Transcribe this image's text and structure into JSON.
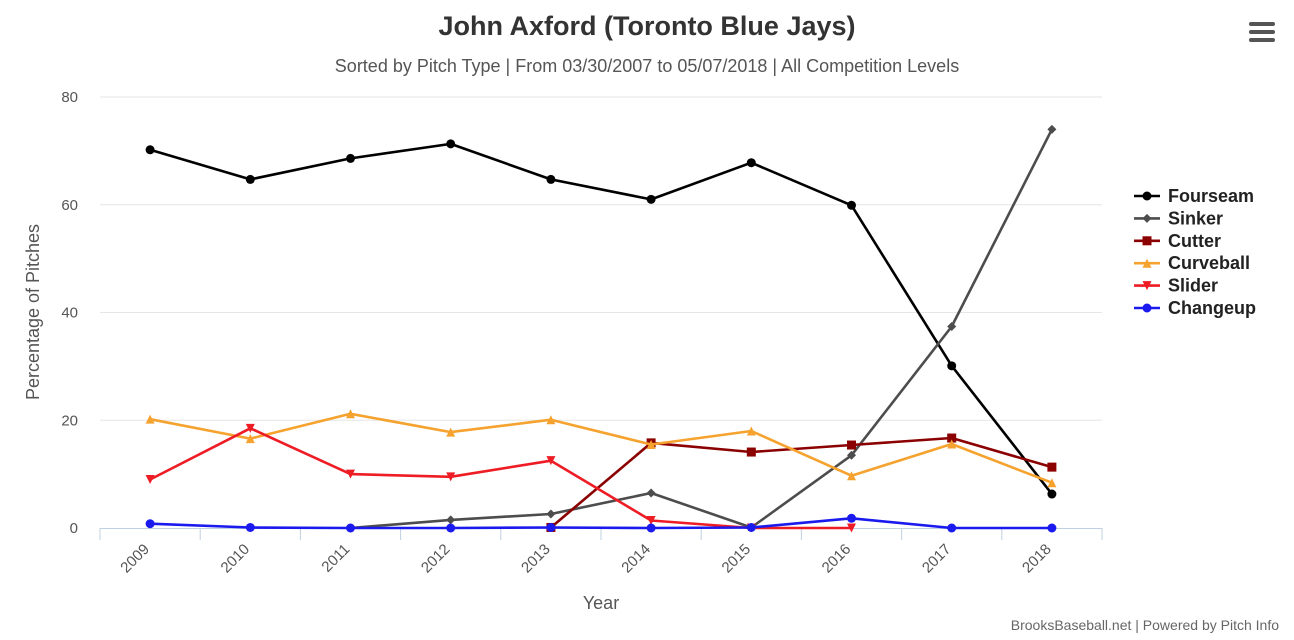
{
  "chart_data": {
    "type": "line",
    "title": "John Axford (Toronto Blue Jays)",
    "subtitle": "Sorted by Pitch Type | From 03/30/2007 to 05/07/2018 | All Competition Levels",
    "xlabel": "Year",
    "ylabel": "Percentage of Pitches",
    "categories": [
      "2009",
      "2010",
      "2011",
      "2012",
      "2013",
      "2014",
      "2015",
      "2016",
      "2017",
      "2018"
    ],
    "ylim": [
      0,
      80
    ],
    "yticks": [
      "0",
      "20",
      "40",
      "60",
      "80"
    ],
    "grid": true,
    "legend_position": "right",
    "series": [
      {
        "name": "Fourseam",
        "color": "#000000",
        "marker": "circle",
        "values": [
          70.2,
          64.7,
          68.6,
          71.3,
          64.7,
          61.0,
          67.8,
          59.9,
          30.1,
          6.3
        ]
      },
      {
        "name": "Sinker",
        "color": "#4d4d4d",
        "marker": "diamond",
        "values": [
          null,
          null,
          0.0,
          1.5,
          2.6,
          6.5,
          0.1,
          13.5,
          37.4,
          74.0
        ]
      },
      {
        "name": "Cutter",
        "color": "#8b0000",
        "marker": "square",
        "values": [
          null,
          null,
          null,
          null,
          0.1,
          15.8,
          14.1,
          15.4,
          16.7,
          11.3
        ]
      },
      {
        "name": "Curveball",
        "color": "#f5a22f",
        "marker": "triangle",
        "values": [
          20.2,
          16.6,
          21.2,
          17.8,
          20.1,
          15.5,
          18.0,
          9.7,
          15.6,
          8.4
        ]
      },
      {
        "name": "Slider",
        "color": "#ee1c25",
        "marker": "triangle-down",
        "values": [
          9.0,
          18.5,
          10.0,
          9.5,
          12.5,
          1.4,
          0.0,
          0.0,
          null,
          null
        ]
      },
      {
        "name": "Changeup",
        "color": "#1a1aee",
        "marker": "circle",
        "values": [
          0.8,
          0.1,
          0.0,
          0.0,
          0.1,
          0.0,
          0.1,
          1.8,
          0.0,
          0.0
        ]
      }
    ]
  },
  "credits": "BrooksBaseball.net | Powered by Pitch Info",
  "menu": {
    "icon": "hamburger-menu-icon"
  }
}
